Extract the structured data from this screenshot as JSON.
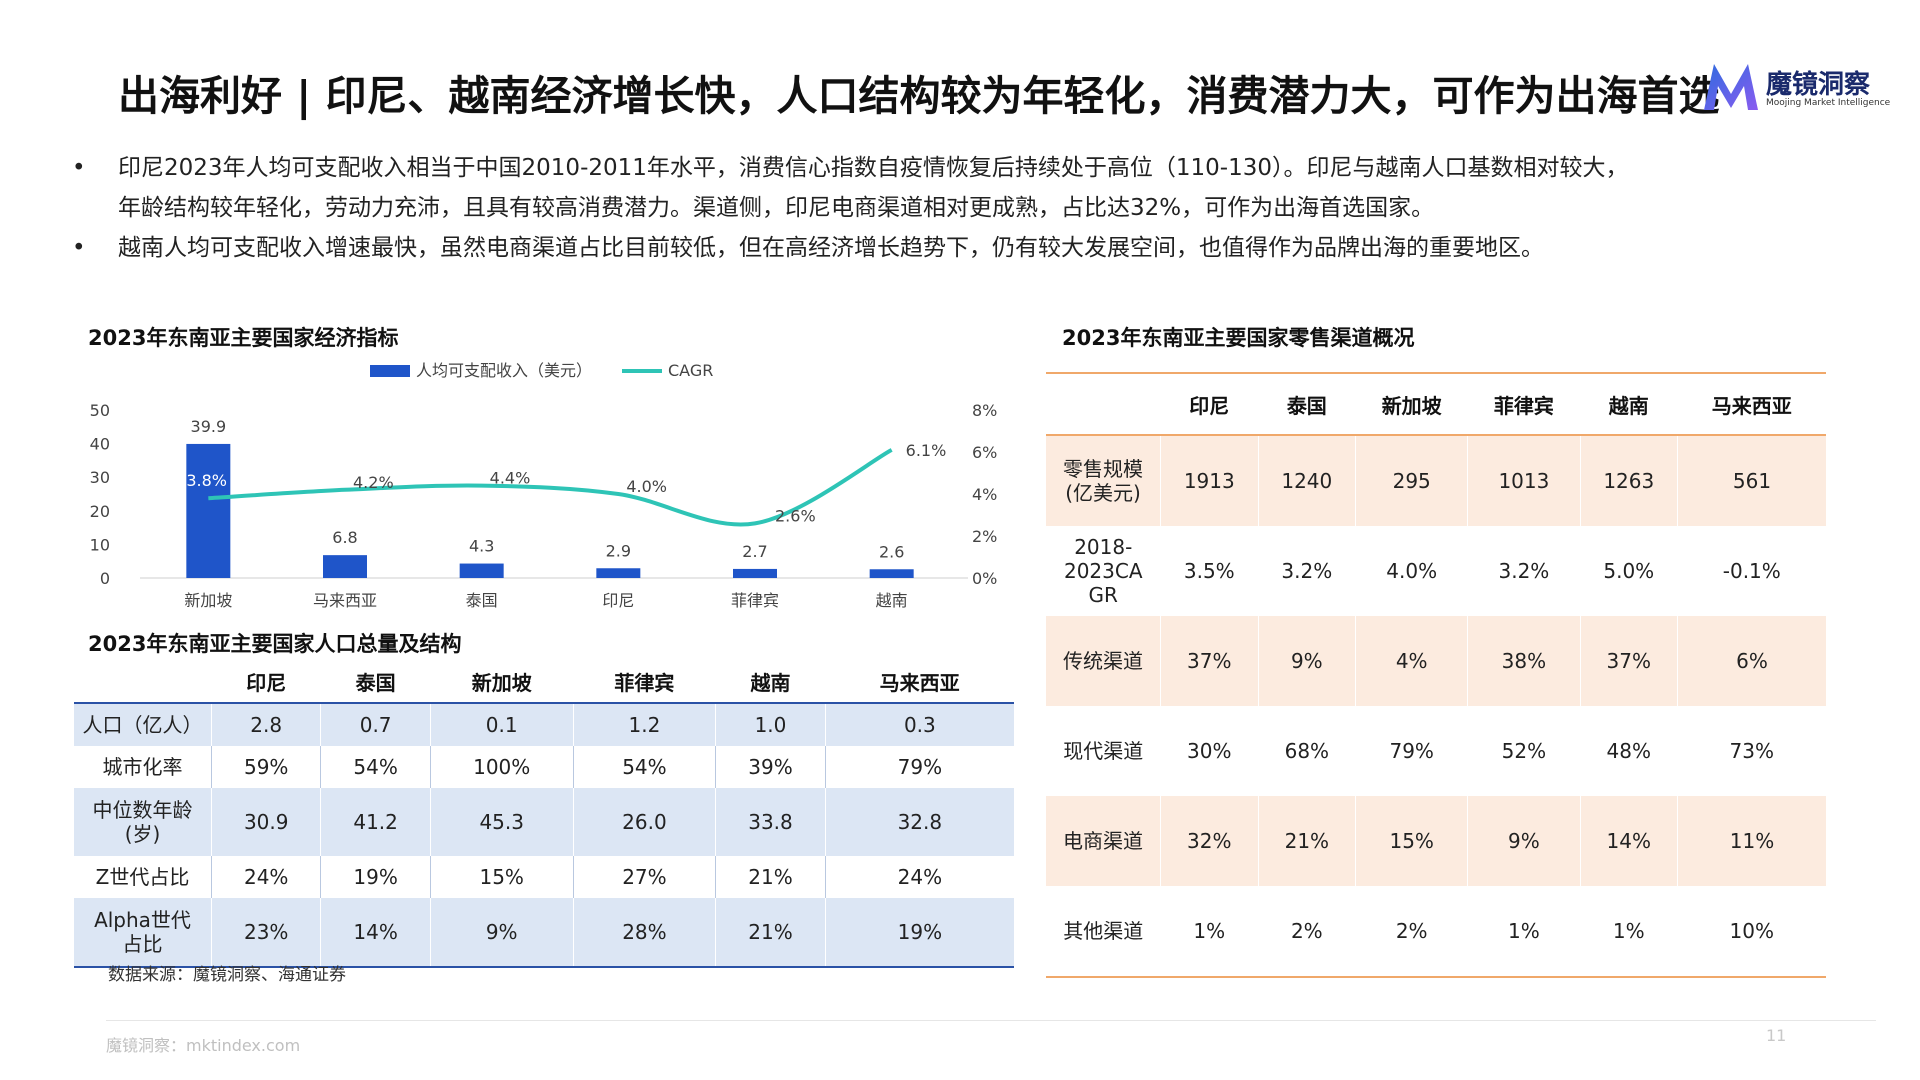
{
  "title": "出海利好 | 印尼、越南经济增长快，人口结构较为年轻化，消费潜力大，可作为出海首选",
  "logo": {
    "name": "魔镜洞察",
    "sub": "Moojing Market Intelligence",
    "accent": "#2f6bdf"
  },
  "bullets": [
    {
      "symbol": "•",
      "lines": [
        "印尼2023年人均可支配收入相当于中国2010-2011年水平，消费信心指数自疫情恢复后持续处于高位（110-130）。印尼与越南人口基数相对较大，",
        "年龄结构较年轻化，劳动力充沛，且具有较高消费潜力。渠道侧，印尼电商渠道相对更成熟，占比达32%，可作为出海首选国家。"
      ]
    },
    {
      "symbol": "•",
      "lines": [
        "越南人均可支配收入增速最快，虽然电商渠道占比目前较低，但在高经济增长趋势下，仍有较大发展空间，也值得作为品牌出海的重要地区。"
      ]
    }
  ],
  "econ_title": "2023年东南亚主要国家经济指标",
  "chart_data": {
    "type": "bar",
    "categories": [
      "新加坡",
      "马来西亚",
      "泰国",
      "印尼",
      "菲律宾",
      "越南"
    ],
    "series": [
      {
        "name": "人均可支配收入（美元）",
        "type": "bar",
        "axis": "left",
        "values": [
          39.9,
          6.8,
          4.3,
          2.9,
          2.7,
          2.6
        ],
        "labels": [
          "39.9",
          "6.8",
          "4.3",
          "2.9",
          "2.7",
          "2.6"
        ],
        "color": "#1f55c9"
      },
      {
        "name": "CAGR",
        "type": "line",
        "axis": "right",
        "values": [
          3.8,
          4.2,
          4.4,
          4.0,
          2.6,
          6.1
        ],
        "labels": [
          "3.8%",
          "4.2%",
          "4.4%",
          "4.0%",
          "2.6%",
          "6.1%"
        ],
        "color": "#2ec4b6"
      }
    ],
    "y_left": {
      "ticks": [
        "0",
        "10",
        "20",
        "30",
        "40",
        "50"
      ],
      "range": [
        0,
        50
      ]
    },
    "y_right": {
      "ticks": [
        "0%",
        "2%",
        "4%",
        "6%",
        "8%"
      ],
      "range": [
        0,
        8
      ]
    },
    "legend": "top-center",
    "grid": false
  },
  "pop_title": "2023年东南亚主要国家人口总量及结构",
  "pop_table": {
    "headers": [
      "",
      "印尼",
      "泰国",
      "新加坡",
      "菲律宾",
      "越南",
      "马来西亚"
    ],
    "rows": [
      {
        "label": [
          "人口（亿人）"
        ],
        "cells": [
          "2.8",
          "0.7",
          "0.1",
          "1.2",
          "1.0",
          "0.3"
        ]
      },
      {
        "label": [
          "城市化率"
        ],
        "cells": [
          "59%",
          "54%",
          "100%",
          "54%",
          "39%",
          "79%"
        ]
      },
      {
        "label": [
          "中位数年龄",
          "(岁)"
        ],
        "cells": [
          "30.9",
          "41.2",
          "45.3",
          "26.0",
          "33.8",
          "32.8"
        ]
      },
      {
        "label": [
          "Z世代占比"
        ],
        "cells": [
          "24%",
          "19%",
          "15%",
          "27%",
          "21%",
          "24%"
        ]
      },
      {
        "label": [
          "Alpha世代",
          "占比"
        ],
        "cells": [
          "23%",
          "14%",
          "9%",
          "28%",
          "21%",
          "19%"
        ]
      }
    ]
  },
  "retail_title": "2023年东南亚主要国家零售渠道概况",
  "retail_table": {
    "headers": [
      "",
      "印尼",
      "泰国",
      "新加坡",
      "菲律宾",
      "越南",
      "马来西亚"
    ],
    "rows": [
      {
        "label": [
          "零售规模",
          "(亿美元)"
        ],
        "cells": [
          "1913",
          "1240",
          "295",
          "1013",
          "1263",
          "561"
        ]
      },
      {
        "label": [
          "2018-",
          "2023CA",
          "GR"
        ],
        "cells": [
          "3.5%",
          "3.2%",
          "4.0%",
          "3.2%",
          "5.0%",
          "-0.1%"
        ]
      },
      {
        "label": [
          "传统渠道"
        ],
        "cells": [
          "37%",
          "9%",
          "4%",
          "38%",
          "37%",
          "6%"
        ]
      },
      {
        "label": [
          "现代渠道"
        ],
        "cells": [
          "30%",
          "68%",
          "79%",
          "52%",
          "48%",
          "73%"
        ]
      },
      {
        "label": [
          "电商渠道"
        ],
        "cells": [
          "32%",
          "21%",
          "15%",
          "9%",
          "14%",
          "11%"
        ]
      },
      {
        "label": [
          "其他渠道"
        ],
        "cells": [
          "1%",
          "2%",
          "2%",
          "1%",
          "1%",
          "10%"
        ]
      }
    ]
  },
  "source": "数据来源：魔镜洞察、海通证券",
  "footer": "魔镜洞察：mktindex.com",
  "page_number": "11"
}
